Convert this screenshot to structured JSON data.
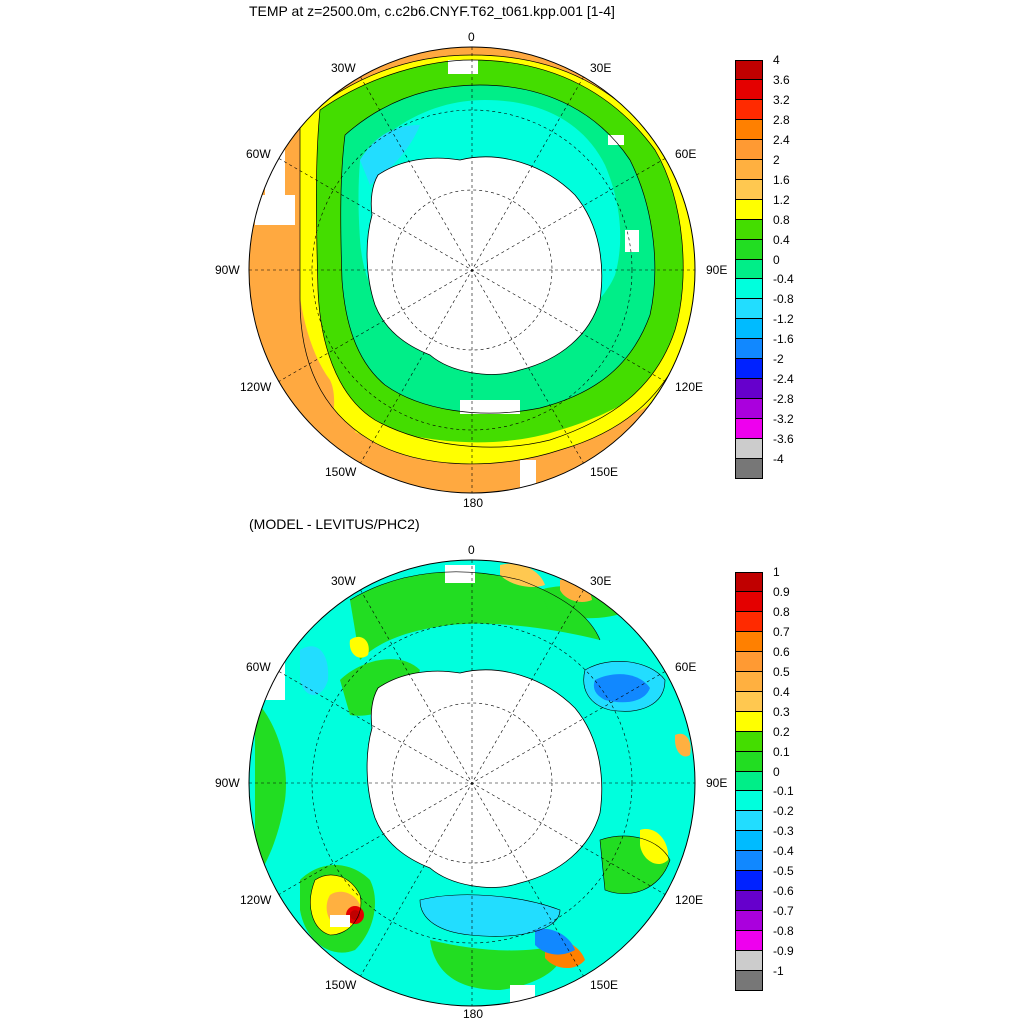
{
  "top_panel": {
    "title": "TEMP at z=2500.0m, c.c2b6.CNYF.T62_t061.kpp.001 [1-4]",
    "longitude_labels": {
      "top": "0",
      "upper_left": "30W",
      "upper_right": "30E",
      "left_upper": "60W",
      "right_upper": "60E",
      "left": "90W",
      "right": "90E",
      "left_lower": "120W",
      "right_lower": "120E",
      "lower_left": "150W",
      "lower_right": "150E",
      "bottom": "180"
    },
    "colorbar": {
      "ticks": [
        "4",
        "3.6",
        "3.2",
        "2.8",
        "2.4",
        "2",
        "1.6",
        "1.2",
        "0.8",
        "0.4",
        "0",
        "-0.4",
        "-0.8",
        "-1.2",
        "-1.6",
        "-2",
        "-2.4",
        "-2.8",
        "-3.2",
        "-3.6",
        "-4"
      ],
      "colors": [
        "#c00000",
        "#e40000",
        "#ff2a00",
        "#ff8000",
        "#ff9a33",
        "#ffb040",
        "#ffc850",
        "#ffff00",
        "#44dd00",
        "#22dd22",
        "#00ee88",
        "#00ffdd",
        "#22ddff",
        "#00bbff",
        "#1188ff",
        "#0022ff",
        "#6600cc",
        "#aa00dd",
        "#ee00ee",
        "#cccccc",
        "#777777"
      ]
    }
  },
  "bottom_panel": {
    "title": "(MODEL - LEVITUS/PHC2)",
    "longitude_labels": {
      "top": "0",
      "upper_left": "30W",
      "upper_right": "30E",
      "left_upper": "60W",
      "right_upper": "60E",
      "left": "90W",
      "right": "90E",
      "left_lower": "120W",
      "right_lower": "120E",
      "lower_left": "150W",
      "lower_right": "150E",
      "bottom": "180"
    },
    "colorbar": {
      "ticks": [
        "1",
        "0.9",
        "0.8",
        "0.7",
        "0.6",
        "0.5",
        "0.4",
        "0.3",
        "0.2",
        "0.1",
        "0",
        "-0.1",
        "-0.2",
        "-0.3",
        "-0.4",
        "-0.5",
        "-0.6",
        "-0.7",
        "-0.8",
        "-0.9",
        "-1"
      ],
      "colors": [
        "#c00000",
        "#e40000",
        "#ff2a00",
        "#ff8000",
        "#ff9a33",
        "#ffb040",
        "#ffc850",
        "#ffff00",
        "#44dd00",
        "#22dd22",
        "#00ee88",
        "#00ffdd",
        "#22ddff",
        "#00bbff",
        "#1188ff",
        "#0022ff",
        "#6600cc",
        "#aa00dd",
        "#ee00ee",
        "#cccccc",
        "#777777"
      ]
    }
  }
}
